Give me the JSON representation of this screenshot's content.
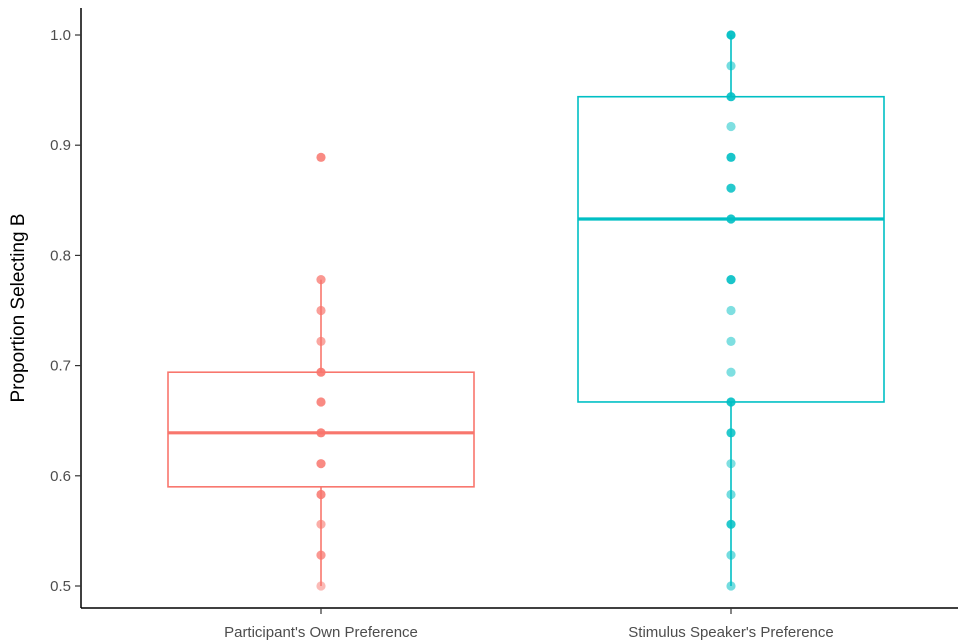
{
  "chart_data": {
    "type": "box",
    "title": "",
    "xlabel": "",
    "ylabel": "Proportion Selecting B",
    "ylim": [
      0.49,
      1.022
    ],
    "y_ticks": [
      0.5,
      0.6,
      0.7,
      0.8,
      0.9,
      1.0
    ],
    "y_tick_labels": [
      "0.5",
      "0.6",
      "0.7",
      "0.8",
      "0.9",
      "1.0"
    ],
    "grid": false,
    "legend": "none",
    "categories": [
      "Participant's Own Preference",
      "Stimulus Speaker's Preference"
    ],
    "series": [
      {
        "color": "#F8766D",
        "box": {
          "whisker_low": 0.5,
          "q1": 0.59,
          "median": 0.639,
          "q3": 0.694,
          "whisker_high": 0.778
        },
        "points": [
          0.5,
          0.528,
          0.556,
          0.583,
          0.611,
          0.639,
          0.667,
          0.694,
          0.722,
          0.75,
          0.778,
          0.889
        ],
        "point_opacity": [
          0.5,
          0.75,
          0.6,
          0.85,
          0.85,
          0.9,
          0.85,
          0.9,
          0.65,
          0.7,
          0.75,
          0.85
        ]
      },
      {
        "color": "#00BFC4",
        "box": {
          "whisker_low": 0.5,
          "q1": 0.667,
          "median": 0.833,
          "q3": 0.944,
          "whisker_high": 1.0
        },
        "points": [
          0.5,
          0.528,
          0.556,
          0.583,
          0.611,
          0.639,
          0.667,
          0.694,
          0.722,
          0.75,
          0.778,
          0.833,
          0.861,
          0.889,
          0.917,
          0.944,
          0.972,
          1.0
        ],
        "point_opacity": [
          0.55,
          0.55,
          0.85,
          0.55,
          0.5,
          0.85,
          0.9,
          0.5,
          0.5,
          0.5,
          0.9,
          0.9,
          0.85,
          0.9,
          0.5,
          0.9,
          0.55,
          0.95
        ]
      }
    ]
  }
}
